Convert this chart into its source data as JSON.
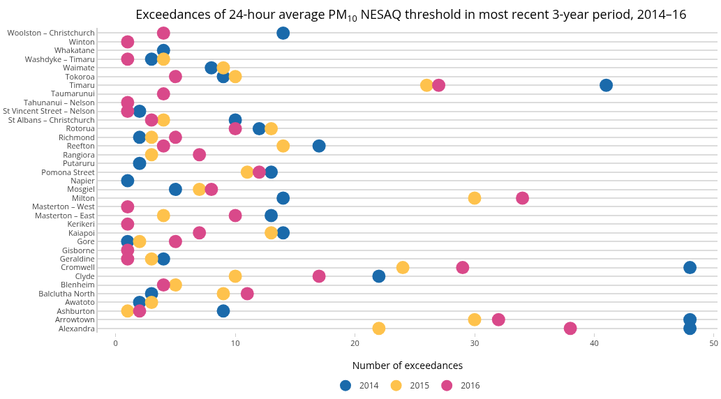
{
  "chart_data": {
    "type": "scatter",
    "orientation": "horizontal",
    "title": "Exceedances of 24-hour average PM$_{10}$ NESAQ threshold in most recent 3-year period, 2014–16",
    "xlabel": "Number of exceedances",
    "categories": [
      "Woolston – Christchurch",
      "Winton",
      "Whakatane",
      "Washdyke – Timaru",
      "Waimate",
      "Tokoroa",
      "Timaru",
      "Taumarunui",
      "Tahunanui – Nelson",
      "St Vincent Street – Nelson",
      "St Albans – Christchurch",
      "Rotorua",
      "Richmond",
      "Reefton",
      "Rangiora",
      "Putaruru",
      "Pomona Street",
      "Napier",
      "Mosgiel",
      "Milton",
      "Masterton – West",
      "Masterton – East",
      "Kerikeri",
      "Kaiapoi",
      "Gore",
      "Gisborne",
      "Geraldine",
      "Cromwell",
      "Clyde",
      "Blenheim",
      "Balclutha North",
      "Awatoto",
      "Ashburton",
      "Arrowtown",
      "Alexandra"
    ],
    "series": [
      {
        "name": "2014",
        "color": "#1a6aab",
        "values": [
          14,
          null,
          4,
          3,
          8,
          9,
          41,
          null,
          null,
          2,
          10,
          12,
          2,
          17,
          null,
          2,
          13,
          1,
          5,
          14,
          null,
          13,
          null,
          14,
          1,
          null,
          4,
          48,
          22,
          null,
          3,
          2,
          9,
          48,
          48
        ]
      },
      {
        "name": "2015",
        "color": "#fec24c",
        "values": [
          null,
          null,
          null,
          4,
          9,
          10,
          26,
          null,
          null,
          null,
          4,
          13,
          3,
          14,
          3,
          null,
          11,
          null,
          7,
          30,
          null,
          4,
          null,
          13,
          2,
          null,
          3,
          24,
          10,
          5,
          9,
          3,
          1,
          30,
          22
        ]
      },
      {
        "name": "2016",
        "color": "#d9498a",
        "values": [
          4,
          1,
          null,
          1,
          null,
          5,
          27,
          4,
          1,
          1,
          3,
          10,
          5,
          4,
          7,
          null,
          12,
          null,
          8,
          34,
          1,
          10,
          1,
          7,
          5,
          1,
          1,
          29,
          17,
          4,
          11,
          null,
          2,
          32,
          38
        ]
      }
    ],
    "xlim": [
      -1.5,
      50.3
    ],
    "xticks": [
      0,
      10,
      20,
      30,
      40,
      50
    ],
    "grid": "y",
    "legend": "bottom",
    "marker": "circle"
  }
}
